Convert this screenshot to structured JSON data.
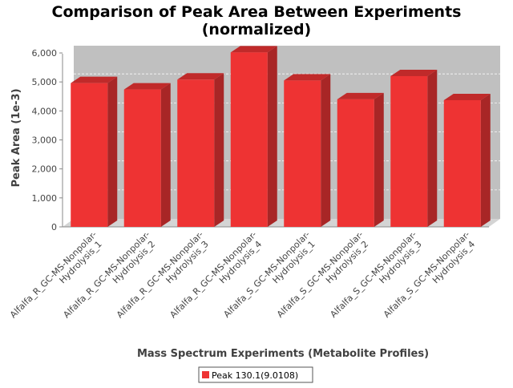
{
  "chart_data": {
    "type": "bar",
    "title": [
      "Comparison of Peak Area Between Experiments",
      "(normalized)"
    ],
    "xlabel": "Mass Spectrum Experiments (Metabolite Profiles)",
    "ylabel": "Peak Area (1e-3)",
    "ylim": [
      0,
      6250
    ],
    "yticks": [
      0,
      1000,
      2000,
      3000,
      4000,
      5000,
      6000
    ],
    "ytick_labels": [
      "0",
      "1,000",
      "2,000",
      "3,000",
      "4,000",
      "5,000",
      "6,000"
    ],
    "grid": true,
    "legend_position": "bottom",
    "categories": [
      [
        "Alfalfa_R_GC-MS-Nonpolar-",
        "Hydrolysis_1"
      ],
      [
        "Alfalfa_R_GC-MS-Nonpolar-",
        "Hydrolysis_2"
      ],
      [
        "Alfalfa_R_GC-MS-Nonpolar-",
        "Hydrolysis_3"
      ],
      [
        "Alfalfa_R_GC-MS-Nonpolar-",
        "Hydrolysis_4"
      ],
      [
        "Alfalfa_S_GC-MS-Nonpolar-",
        "Hydrolysis_1"
      ],
      [
        "Alfalfa_S_GC-MS-Nonpolar-",
        "Hydrolysis_2"
      ],
      [
        "Alfalfa_S_GC-MS-Nonpolar-",
        "Hydrolysis_3"
      ],
      [
        "Alfalfa_S_GC-MS-Nonpolar-",
        "Hydrolysis_4"
      ]
    ],
    "series": [
      {
        "name": "Peak 130.1(9.0108)",
        "color": "#ee3333",
        "values": [
          4960,
          4740,
          5080,
          6020,
          5050,
          4400,
          5200,
          4370
        ]
      }
    ]
  }
}
